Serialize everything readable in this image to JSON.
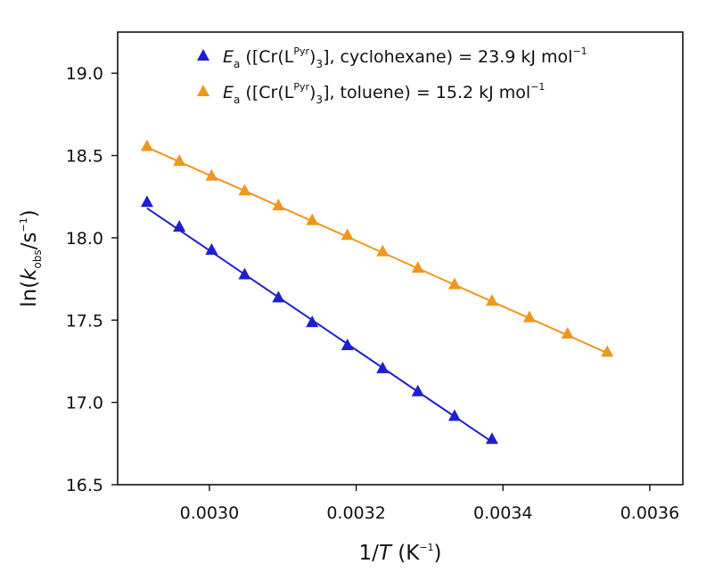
{
  "chart_data": {
    "type": "scatter",
    "xlabel": {
      "prefix": "1/",
      "var": "T",
      "unit_open": " (K",
      "unit_exp": "−1",
      "unit_close": ")"
    },
    "ylabel": {
      "prefix": "ln(",
      "var": "k",
      "var_sub": "obs",
      "mid": "/s",
      "exp": "−1",
      "close": ")"
    },
    "xlim": [
      0.002875,
      0.003645
    ],
    "ylim": [
      16.5,
      19.25
    ],
    "xticks": [
      0.003,
      0.0032,
      0.0034,
      0.0036
    ],
    "xtick_labels": [
      "0.0030",
      "0.0032",
      "0.0034",
      "0.0036"
    ],
    "yticks": [
      16.5,
      17.0,
      17.5,
      18.0,
      18.5,
      19.0
    ],
    "ytick_labels": [
      "16.5",
      "17.0",
      "17.5",
      "18.0",
      "18.5",
      "19.0"
    ],
    "legend_position": "top-left",
    "series": [
      {
        "name": "cyclohexane",
        "color": "#1f1fcf",
        "marker": "triangle",
        "legend": {
          "E": "E",
          "E_sub": "a",
          "open": " ([Cr(L",
          "sup": "Pyr",
          "mid": ")",
          "sub3": "3",
          "close": "], cyclohexane) = 23.9 kJ mol",
          "exp": "−1"
        },
        "x": [
          0.002915,
          0.002959,
          0.003003,
          0.003048,
          0.003094,
          0.00314,
          0.003188,
          0.003236,
          0.003284,
          0.003334,
          0.003385
        ],
        "y": [
          18.22,
          18.07,
          17.93,
          17.78,
          17.64,
          17.49,
          17.35,
          17.21,
          17.07,
          16.92,
          16.78
        ],
        "fit": {
          "x": [
            0.002915,
            0.003385
          ],
          "y": [
            18.18,
            16.76
          ]
        }
      },
      {
        "name": "toluene",
        "color": "#f0961e",
        "marker": "triangle",
        "legend": {
          "E": "E",
          "E_sub": "a",
          "open": " ([Cr(L",
          "sup": "Pyr",
          "mid": ")",
          "sub3": "3",
          "close": "], toluene) = 15.2 kJ mol",
          "exp": "−1"
        },
        "x": [
          0.002915,
          0.002959,
          0.003003,
          0.003048,
          0.003094,
          0.00314,
          0.003188,
          0.003236,
          0.003284,
          0.003334,
          0.003385,
          0.003436,
          0.003488,
          0.003542
        ],
        "y": [
          18.56,
          18.47,
          18.38,
          18.29,
          18.2,
          18.11,
          18.02,
          17.92,
          17.82,
          17.72,
          17.62,
          17.52,
          17.42,
          17.31
        ],
        "fit": {
          "x": [
            0.002915,
            0.003542
          ],
          "y": [
            18.55,
            17.3
          ]
        }
      }
    ]
  }
}
